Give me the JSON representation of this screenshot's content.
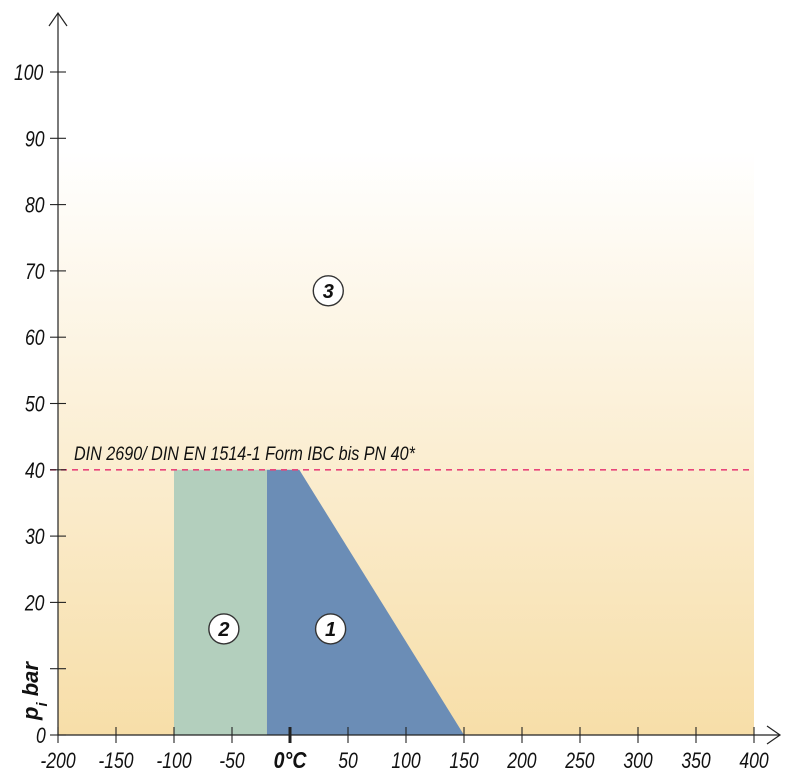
{
  "chart_data": {
    "type": "area",
    "x_axis": {
      "range": [
        -200,
        400
      ],
      "ticks": [
        -200,
        -150,
        -100,
        -50,
        0,
        50,
        100,
        150,
        200,
        250,
        300,
        350,
        400
      ],
      "tick_labels": [
        "-200",
        "-150",
        "-100",
        "-50",
        "0°C",
        "50",
        "100",
        "150",
        "200",
        "250",
        "300",
        "350",
        "400"
      ]
    },
    "y_axis": {
      "range": [
        0,
        100
      ],
      "ticks": [
        0,
        10,
        20,
        30,
        40,
        50,
        60,
        70,
        80,
        90,
        100
      ],
      "tick_labels": [
        "0",
        "",
        "20",
        "30",
        "40",
        "50",
        "60",
        "70",
        "80",
        "90",
        "100"
      ],
      "label_main": "p",
      "label_sub": "i",
      "label_rest": " bar"
    },
    "regions": [
      {
        "marker": "1",
        "color": "#6b8db6",
        "points": [
          [
            -20,
            0
          ],
          [
            -20,
            40
          ],
          [
            8,
            40
          ],
          [
            150,
            0
          ]
        ]
      },
      {
        "marker": "2",
        "color": "#b3cfbd",
        "points": [
          [
            -100,
            0
          ],
          [
            -100,
            40
          ],
          [
            -20,
            40
          ],
          [
            -20,
            0
          ]
        ]
      },
      {
        "marker": "3"
      }
    ],
    "reference_line": {
      "y": 40,
      "label": "DIN 2690/ DIN EN 1514-1 Form IBC bis PN 40*",
      "color": "#e8467a"
    },
    "background": {
      "top_color": "#ffffff",
      "bottom_color": "#f7dea8"
    },
    "markers": [
      {
        "label": "1",
        "x": 35,
        "y": 16
      },
      {
        "label": "2",
        "x": -57,
        "y": 16
      },
      {
        "label": "3",
        "x": 33,
        "y": 67
      }
    ]
  }
}
